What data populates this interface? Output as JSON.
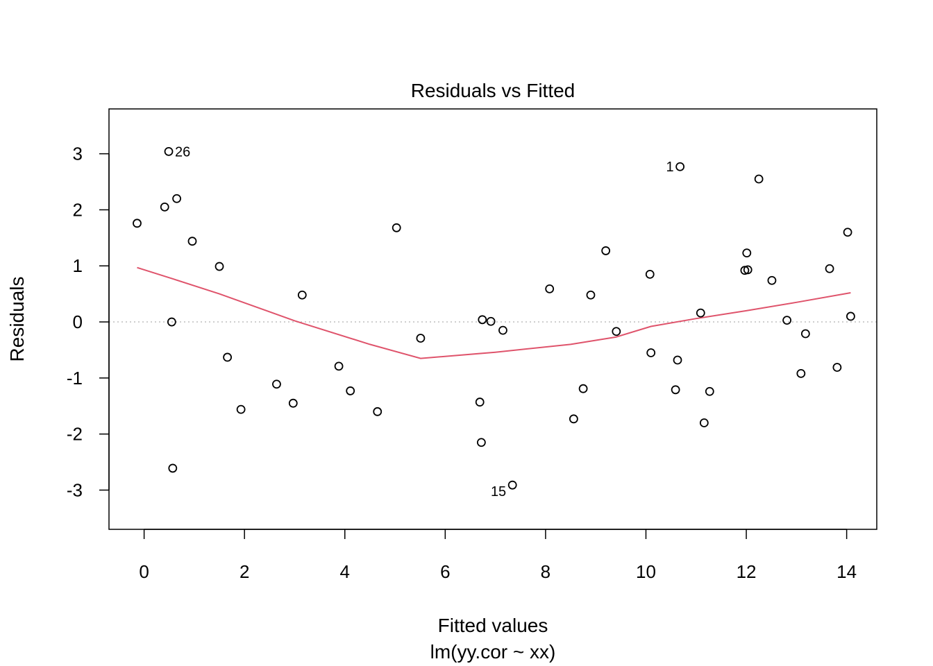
{
  "chart_data": {
    "type": "scatter",
    "title": "Residuals vs Fitted",
    "xlabel": "Fitted values",
    "sublabel": "lm(yy.cor ~ xx)",
    "ylabel": "Residuals",
    "xlim": [
      -0.7,
      14.6
    ],
    "ylim": [
      -3.7,
      3.8
    ],
    "xticks": [
      0,
      2,
      4,
      6,
      8,
      10,
      12,
      14
    ],
    "yticks": [
      3,
      2,
      1,
      0,
      -1,
      -2,
      -3
    ],
    "grid": false,
    "reference_line": 0,
    "colors": {
      "points": "#000000",
      "smooth": "#DF536B",
      "reference": "#BEBEBE"
    },
    "points": [
      {
        "x": -0.14,
        "y": 1.76
      },
      {
        "x": 0.41,
        "y": 2.05
      },
      {
        "x": 0.49,
        "y": 3.04,
        "label": "26"
      },
      {
        "x": 0.55,
        "y": 0.0
      },
      {
        "x": 0.57,
        "y": -2.61
      },
      {
        "x": 0.65,
        "y": 2.2
      },
      {
        "x": 0.96,
        "y": 1.44
      },
      {
        "x": 1.5,
        "y": 0.99
      },
      {
        "x": 1.66,
        "y": -0.63
      },
      {
        "x": 1.93,
        "y": -1.56
      },
      {
        "x": 2.64,
        "y": -1.11
      },
      {
        "x": 2.97,
        "y": -1.45
      },
      {
        "x": 3.15,
        "y": 0.48
      },
      {
        "x": 3.88,
        "y": -0.79
      },
      {
        "x": 4.11,
        "y": -1.23
      },
      {
        "x": 4.65,
        "y": -1.6
      },
      {
        "x": 5.03,
        "y": 1.68
      },
      {
        "x": 5.51,
        "y": -0.29
      },
      {
        "x": 6.69,
        "y": -1.43
      },
      {
        "x": 6.72,
        "y": -2.15
      },
      {
        "x": 6.74,
        "y": 0.04
      },
      {
        "x": 6.91,
        "y": 0.01
      },
      {
        "x": 7.15,
        "y": -0.15
      },
      {
        "x": 7.34,
        "y": -2.91,
        "label": "15"
      },
      {
        "x": 8.08,
        "y": 0.59
      },
      {
        "x": 8.56,
        "y": -1.73
      },
      {
        "x": 8.75,
        "y": -1.19
      },
      {
        "x": 8.9,
        "y": 0.48
      },
      {
        "x": 9.2,
        "y": 1.27
      },
      {
        "x": 9.41,
        "y": -0.17
      },
      {
        "x": 10.08,
        "y": 0.85
      },
      {
        "x": 10.1,
        "y": -0.55
      },
      {
        "x": 10.59,
        "y": -1.21
      },
      {
        "x": 10.63,
        "y": -0.68
      },
      {
        "x": 10.68,
        "y": 2.77,
        "label": "1"
      },
      {
        "x": 11.09,
        "y": 0.16
      },
      {
        "x": 11.16,
        "y": -1.8
      },
      {
        "x": 11.27,
        "y": -1.24
      },
      {
        "x": 11.97,
        "y": 0.92
      },
      {
        "x": 12.01,
        "y": 1.23
      },
      {
        "x": 12.03,
        "y": 0.93
      },
      {
        "x": 12.25,
        "y": 2.55
      },
      {
        "x": 12.51,
        "y": 0.74
      },
      {
        "x": 12.81,
        "y": 0.03
      },
      {
        "x": 13.09,
        "y": -0.92
      },
      {
        "x": 13.18,
        "y": -0.21
      },
      {
        "x": 13.66,
        "y": 0.95
      },
      {
        "x": 13.81,
        "y": -0.81
      },
      {
        "x": 14.02,
        "y": 1.6
      },
      {
        "x": 14.08,
        "y": 0.1
      }
    ],
    "smooth_line": [
      {
        "x": -0.14,
        "y": 0.97
      },
      {
        "x": 0.6,
        "y": 0.76
      },
      {
        "x": 1.5,
        "y": 0.5
      },
      {
        "x": 3.0,
        "y": 0.02
      },
      {
        "x": 4.5,
        "y": -0.4
      },
      {
        "x": 5.51,
        "y": -0.65
      },
      {
        "x": 7.0,
        "y": -0.54
      },
      {
        "x": 8.5,
        "y": -0.4
      },
      {
        "x": 9.4,
        "y": -0.27
      },
      {
        "x": 10.1,
        "y": -0.08
      },
      {
        "x": 11.0,
        "y": 0.06
      },
      {
        "x": 12.0,
        "y": 0.2
      },
      {
        "x": 13.0,
        "y": 0.35
      },
      {
        "x": 14.08,
        "y": 0.52
      }
    ]
  }
}
